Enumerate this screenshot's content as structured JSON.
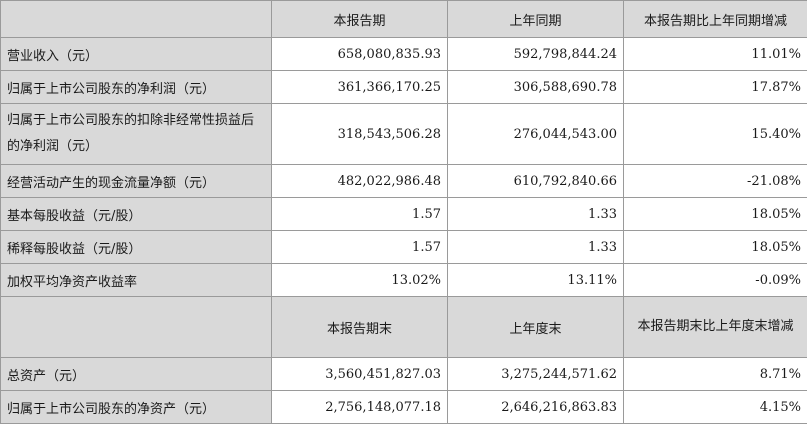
{
  "section1": {
    "headers": [
      "",
      "本报告期",
      "上年同期",
      "本报告期比上年同期增减"
    ],
    "rows": [
      {
        "label": "营业收入（元）",
        "current": "658,080,835.93",
        "prior": "592,798,844.24",
        "change": "11.01%"
      },
      {
        "label": "归属于上市公司股东的净利润（元）",
        "current": "361,366,170.25",
        "prior": "306,588,690.78",
        "change": "17.87%"
      },
      {
        "label": "归属于上市公司股东的扣除非经常性损益后的净利润（元）",
        "current": "318,543,506.28",
        "prior": "276,044,543.00",
        "change": "15.40%"
      },
      {
        "label": "经营活动产生的现金流量净额（元）",
        "current": "482,022,986.48",
        "prior": "610,792,840.66",
        "change": "-21.08%"
      },
      {
        "label": "基本每股收益（元/股）",
        "current": "1.57",
        "prior": "1.33",
        "change": "18.05%"
      },
      {
        "label": "稀释每股收益（元/股）",
        "current": "1.57",
        "prior": "1.33",
        "change": "18.05%"
      },
      {
        "label": "加权平均净资产收益率",
        "current": "13.02%",
        "prior": "13.11%",
        "change": "-0.09%"
      }
    ]
  },
  "section2": {
    "headers": [
      "",
      "本报告期末",
      "上年度末",
      "本报告期末比上年度末增减"
    ],
    "rows": [
      {
        "label": "总资产（元）",
        "current": "3,560,451,827.03",
        "prior": "3,275,244,571.62",
        "change": "8.71%"
      },
      {
        "label": "归属于上市公司股东的净资产（元）",
        "current": "2,756,148,077.18",
        "prior": "2,646,216,863.83",
        "change": "4.15%"
      }
    ]
  }
}
